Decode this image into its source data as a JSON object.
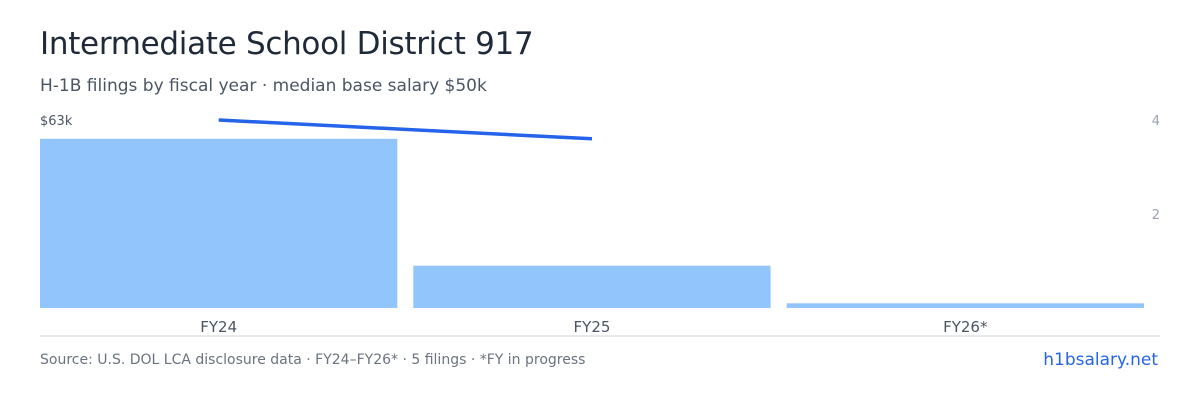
{
  "header": {
    "title": "Intermediate School District 917",
    "subtitle": "H-1B filings by fiscal year · median base salary $50k"
  },
  "footer": {
    "source": "Source: U.S. DOL LCA disclosure data · FY24–FY26* · 5 filings · *FY in progress",
    "brand": "h1bsalary.net"
  },
  "colors": {
    "bar": "#93c5fd",
    "line": "#2563eb",
    "axis": "#d1d5db",
    "tick_text": "#9ca3af"
  },
  "chart_data": {
    "type": "bar",
    "categories": [
      "FY24",
      "FY25",
      "FY26*"
    ],
    "series": [
      {
        "type": "bar",
        "axis": "right",
        "values": [
          3.6,
          0.9,
          0.1
        ]
      },
      {
        "type": "line",
        "axis": "left",
        "values": [
          63000,
          57000,
          null
        ]
      }
    ],
    "left_axis": {
      "tick_labels": [
        "$63k"
      ],
      "ticks": [
        63000
      ]
    },
    "right_axis": {
      "tick_labels": [
        "4",
        "2"
      ],
      "ticks": [
        4,
        2
      ],
      "ylim": [
        0,
        4
      ]
    },
    "grid": false,
    "legend": "none"
  }
}
